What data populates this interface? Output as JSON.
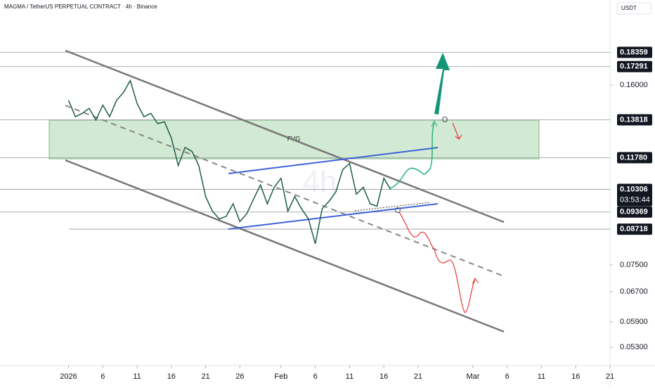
{
  "header": {
    "symbol": "MAGMA / TetherUS PERPETUAL CONTRACT · 4h · Binance",
    "currency": "USDT",
    "watermark": "4h"
  },
  "annotations": {
    "zone": "FVG",
    "countdown": "03:53:44"
  },
  "chart_data": {
    "type": "line",
    "log_scale": true,
    "color": "#1e5c4b",
    "x": [
      "2026-01-01",
      "2026-01-02",
      "2026-01-03",
      "2026-01-04",
      "2026-01-05",
      "2026-01-06",
      "2026-01-07",
      "2026-01-08",
      "2026-01-09",
      "2026-01-10",
      "2026-01-11",
      "2026-01-12",
      "2026-01-13",
      "2026-01-14",
      "2026-01-15",
      "2026-01-16",
      "2026-01-17",
      "2026-01-18",
      "2026-01-19",
      "2026-01-20",
      "2026-01-21",
      "2026-01-22",
      "2026-01-23",
      "2026-01-24",
      "2026-01-25",
      "2026-01-26",
      "2026-01-27",
      "2026-01-28",
      "2026-01-29",
      "2026-01-30",
      "2026-01-31",
      "2026-02-01",
      "2026-02-02",
      "2026-02-03",
      "2026-02-04",
      "2026-02-05",
      "2026-02-06",
      "2026-02-07",
      "2026-02-08",
      "2026-02-09",
      "2026-02-10",
      "2026-02-11",
      "2026-02-12",
      "2026-02-13",
      "2026-02-14",
      "2026-02-15",
      "2026-02-16",
      "2026-02-17"
    ],
    "series": [
      {
        "name": "MAGMAUSDT",
        "color": "#1e5c4b",
        "values": [
          0.15,
          0.14,
          0.142,
          0.145,
          0.138,
          0.147,
          0.14,
          0.15,
          0.155,
          0.163,
          0.148,
          0.14,
          0.142,
          0.136,
          0.137,
          0.128,
          0.114,
          0.123,
          0.121,
          0.114,
          0.1,
          0.094,
          0.091,
          0.092,
          0.097,
          0.09,
          0.093,
          0.099,
          0.105,
          0.097,
          0.104,
          0.108,
          0.094,
          0.1,
          0.095,
          0.091,
          0.082,
          0.095,
          0.098,
          0.102,
          0.112,
          0.115,
          0.101,
          0.104,
          0.097,
          0.096,
          0.108,
          0.103
        ]
      }
    ],
    "xlim": [
      "2025-12-22",
      "2026-03-21"
    ],
    "xticks": [
      {
        "value": "2026-01-01",
        "label": "2026"
      },
      {
        "value": "2026-01-06",
        "label": "6"
      },
      {
        "value": "2026-01-11",
        "label": "11"
      },
      {
        "value": "2026-01-16",
        "label": "16"
      },
      {
        "value": "2026-01-21",
        "label": "21"
      },
      {
        "value": "2026-01-26",
        "label": "26"
      },
      {
        "value": "2026-02-01",
        "label": "Feb"
      },
      {
        "value": "2026-02-06",
        "label": "6"
      },
      {
        "value": "2026-02-11",
        "label": "11"
      },
      {
        "value": "2026-02-16",
        "label": "16"
      },
      {
        "value": "2026-02-21",
        "label": "21"
      },
      {
        "value": "2026-03-01",
        "label": "Mar"
      },
      {
        "value": "2026-03-06",
        "label": "6"
      },
      {
        "value": "2026-03-11",
        "label": "11"
      },
      {
        "value": "2026-03-16",
        "label": "16"
      },
      {
        "value": "2026-03-21",
        "label": "21"
      }
    ],
    "ylim": [
      0.0491,
      0.2289
    ],
    "yticks": [
      {
        "value": 0.16,
        "label": "0.16000"
      },
      {
        "value": 0.075,
        "label": "0.07500"
      },
      {
        "value": 0.067,
        "label": "0.06700"
      },
      {
        "value": 0.059,
        "label": "0.05900"
      },
      {
        "value": 0.053,
        "label": "0.05300"
      }
    ],
    "levels": [
      {
        "value": 0.18359,
        "label": "0.18359"
      },
      {
        "value": 0.17291,
        "label": "0.17291"
      },
      {
        "value": 0.13818,
        "label": "0.13818"
      },
      {
        "value": 0.1178,
        "label": "0.11780"
      },
      {
        "value": 0.10306,
        "label": "0.10306"
      },
      {
        "value": 0.09369,
        "label": "0.09369"
      },
      {
        "value": 0.08718,
        "label": "0.08718"
      }
    ]
  }
}
